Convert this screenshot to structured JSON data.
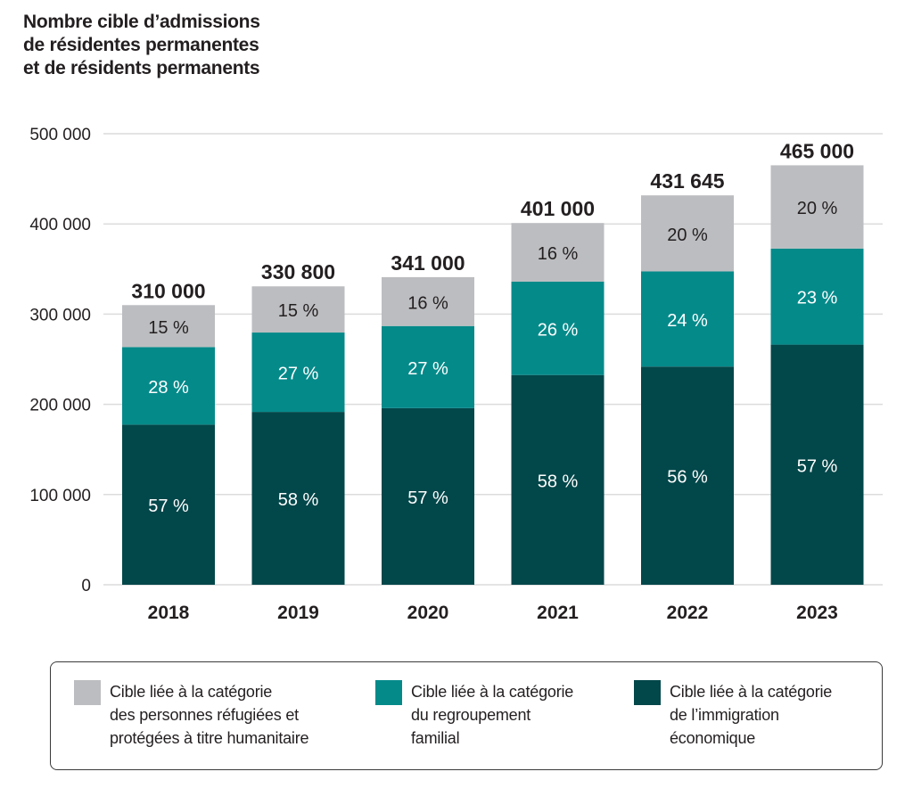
{
  "chart_data": {
    "type": "bar",
    "stacked": true,
    "title": "Nombre cible d’admissions de résidentes permanentes et de résidents permanents",
    "title_lines": [
      "Nombre cible d’admissions",
      "de résidentes permanentes",
      "et de résidents permanents"
    ],
    "xlabel": "",
    "ylabel": "",
    "ylim": [
      0,
      500000
    ],
    "yticks": [
      0,
      100000,
      200000,
      300000,
      400000,
      500000
    ],
    "ytick_labels": [
      "0",
      "100 000",
      "200 000",
      "300 000",
      "400 000",
      "500 000"
    ],
    "grid": true,
    "categories": [
      "2018",
      "2019",
      "2020",
      "2021",
      "2022",
      "2023"
    ],
    "totals": [
      310000,
      330800,
      341000,
      401000,
      431645,
      465000
    ],
    "total_labels": [
      "310 000",
      "330 800",
      "341 000",
      "401 000",
      "431 645",
      "465 000"
    ],
    "series": [
      {
        "name": "Cible liée à la catégorie de l’immigration économique",
        "color": "#02474a",
        "label_color": "#ffffff",
        "values": [
          177500,
          191600,
          195800,
          232500,
          241850,
          266210
        ],
        "percent_labels": [
          "57 %",
          "58 %",
          "57 %",
          "58 %",
          "56 %",
          "57 %"
        ]
      },
      {
        "name": "Cible liée à la catégorie du regroupement familial",
        "color": "#058a8a",
        "label_color": "#ffffff",
        "values": [
          86000,
          88000,
          91000,
          103500,
          105500,
          106500
        ],
        "percent_labels": [
          "28 %",
          "27 %",
          "27 %",
          "26 %",
          "24 %",
          "23 %"
        ]
      },
      {
        "name": "Cible liée à la catégorie des personnes réfugiées et protégées à titre humanitaire",
        "color": "#bcbdc0",
        "label_color": "#231f20",
        "values": [
          46500,
          51200,
          54200,
          65000,
          84295,
          92290
        ],
        "percent_labels": [
          "15 %",
          "15 %",
          "16 %",
          "16 %",
          "20 %",
          "20 %"
        ]
      }
    ],
    "legend_position": "bottom",
    "legend": [
      {
        "color": "#bcbdc0",
        "lines": [
          "Cible liée à la catégorie",
          "des personnes réfugiées et",
          "protégées à titre humanitaire"
        ]
      },
      {
        "color": "#058a8a",
        "lines": [
          "Cible liée à la catégorie",
          "du regroupement",
          "familial"
        ]
      },
      {
        "color": "#02474a",
        "lines": [
          "Cible liée à la catégorie",
          "de l’immigration",
          "économique"
        ]
      }
    ]
  },
  "colors": {
    "gridline": "#dcdcdc",
    "text": "#231f20"
  }
}
